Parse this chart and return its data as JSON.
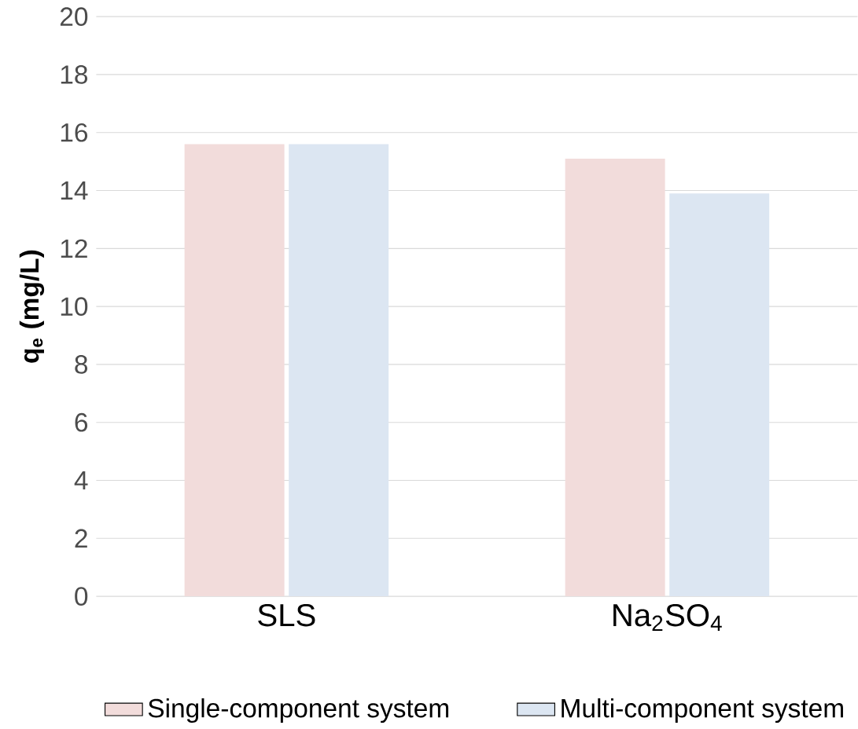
{
  "chart_data": {
    "type": "bar",
    "ylabel": "q$_{e}$ (mg/L)",
    "categories": [
      "SLS",
      "Na$_{2}$SO$_{4}$"
    ],
    "series": [
      {
        "name": "Single-component system",
        "color": "#f2dcdb",
        "values": [
          15.6,
          15.1
        ]
      },
      {
        "name": "Multi-component system",
        "color": "#dce6f2",
        "values": [
          15.6,
          13.9
        ]
      }
    ],
    "ylim": [
      0,
      20
    ],
    "yticks": [
      0,
      2,
      4,
      6,
      8,
      10,
      12,
      14,
      16,
      18,
      20
    ],
    "grid": "y",
    "legend": "bottom"
  }
}
